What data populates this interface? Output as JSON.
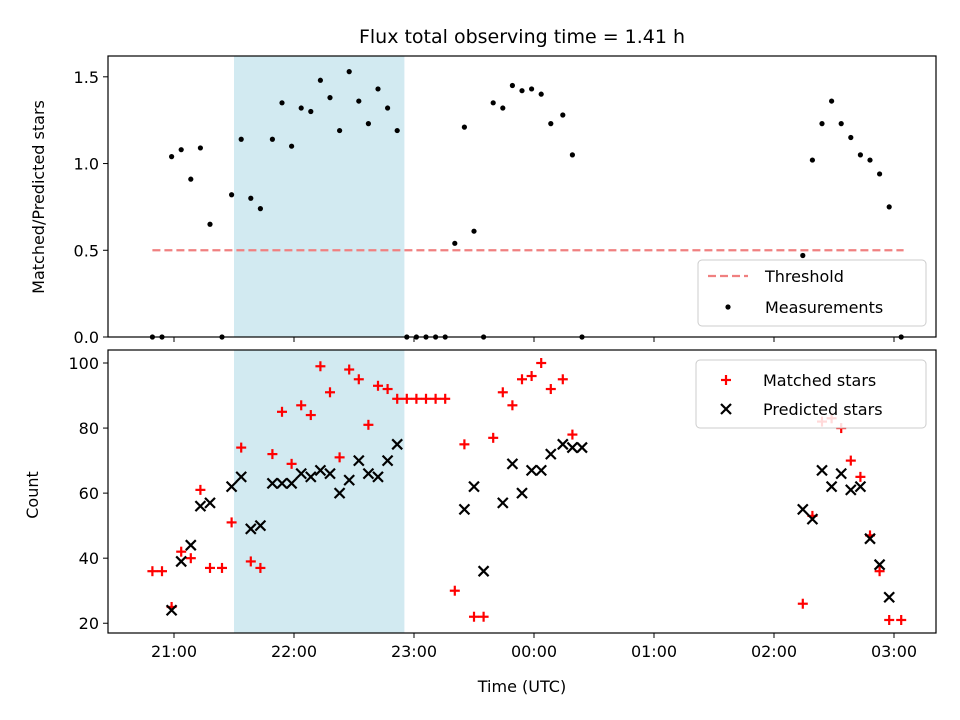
{
  "chart_data": {
    "type": "scatter",
    "title": "Flux total observing time = 1.41 h",
    "xlabel": "Time (UTC)",
    "x_unit": "hours since 00:00 UTC",
    "xlim": [
      -3.55,
      3.35
    ],
    "x_ticks": [
      {
        "value": -3,
        "label": "21:00"
      },
      {
        "value": -2,
        "label": "22:00"
      },
      {
        "value": -1,
        "label": "23:00"
      },
      {
        "value": 0,
        "label": "00:00"
      },
      {
        "value": 1,
        "label": "01:00"
      },
      {
        "value": 2,
        "label": "02:00"
      },
      {
        "value": 3,
        "label": "03:00"
      }
    ],
    "shaded_region": {
      "x": [
        -2.5,
        -1.08
      ],
      "color": "#add8e6"
    },
    "panels": [
      {
        "id": "ratio",
        "ylabel": "Matched/Predicted stars",
        "ylim": [
          0,
          1.62
        ],
        "y_ticks": [
          0.0,
          0.5,
          1.0,
          1.5
        ],
        "y_tick_labels": [
          "0.0",
          "0.5",
          "1.0",
          "1.5"
        ],
        "legend": {
          "placement": "lower right",
          "entries": [
            "Threshold",
            "Measurements"
          ]
        },
        "threshold": {
          "name": "Threshold",
          "y": 0.5,
          "x_range": [
            -3.18,
            3.08
          ],
          "color": "#f08080"
        },
        "measurements": {
          "name": "Measurements",
          "color": "#000000",
          "x": [
            -3.18,
            -3.1,
            -3.02,
            -2.94,
            -2.86,
            -2.78,
            -2.7,
            -2.6,
            -2.52,
            -2.44,
            -2.36,
            -2.28,
            -2.18,
            -2.1,
            -2.02,
            -1.94,
            -1.86,
            -1.78,
            -1.7,
            -1.62,
            -1.54,
            -1.46,
            -1.38,
            -1.3,
            -1.22,
            -1.14,
            -1.06,
            -0.98,
            -0.9,
            -0.82,
            -0.74,
            -0.66,
            -0.58,
            -0.5,
            -0.42,
            -0.34,
            -0.26,
            -0.18,
            -0.1,
            -0.02,
            0.06,
            0.14,
            0.24,
            0.32,
            0.4,
            2.24,
            2.32,
            2.4,
            2.48,
            2.56,
            2.64,
            2.72,
            2.8,
            2.88,
            2.96,
            3.06
          ],
          "y": [
            0.0,
            0.0,
            1.04,
            1.08,
            0.91,
            1.09,
            0.65,
            0.0,
            0.82,
            1.14,
            0.8,
            0.74,
            1.14,
            1.35,
            1.1,
            1.32,
            1.3,
            1.48,
            1.38,
            1.19,
            1.53,
            1.36,
            1.23,
            1.43,
            1.32,
            1.19,
            0.0,
            0.0,
            0.0,
            0.0,
            0.0,
            0.54,
            1.21,
            0.61,
            0.0,
            1.35,
            1.32,
            1.45,
            1.42,
            1.43,
            1.4,
            1.23,
            1.28,
            1.05,
            0.0,
            0.47,
            1.02,
            1.23,
            1.36,
            1.23,
            1.15,
            1.05,
            1.02,
            0.94,
            0.75,
            0.0
          ]
        }
      },
      {
        "id": "count",
        "ylabel": "Count",
        "ylim": [
          17,
          104
        ],
        "y_ticks": [
          20,
          40,
          60,
          80,
          100
        ],
        "y_tick_labels": [
          "20",
          "40",
          "60",
          "80",
          "100"
        ],
        "legend": {
          "placement": "upper right",
          "entries": [
            "Matched stars",
            "Predicted stars"
          ]
        },
        "series": [
          {
            "name": "Matched stars",
            "marker": "plus",
            "color": "#ff0000",
            "x": [
              -3.18,
              -3.1,
              -3.02,
              -2.94,
              -2.86,
              -2.78,
              -2.7,
              -2.6,
              -2.52,
              -2.44,
              -2.36,
              -2.28,
              -2.18,
              -2.1,
              -2.02,
              -1.94,
              -1.86,
              -1.78,
              -1.7,
              -1.62,
              -1.54,
              -1.46,
              -1.38,
              -1.3,
              -1.22,
              -1.14,
              -1.06,
              -0.98,
              -0.9,
              -0.82,
              -0.74,
              -0.66,
              -0.58,
              -0.5,
              -0.42,
              -0.34,
              -0.26,
              -0.18,
              -0.1,
              -0.02,
              0.06,
              0.14,
              0.24,
              0.32,
              0.4,
              2.24,
              2.32,
              2.4,
              2.48,
              2.56,
              2.64,
              2.72,
              2.8,
              2.88,
              2.96,
              3.06
            ],
            "y": [
              36,
              36,
              25,
              42,
              40,
              61,
              37,
              37,
              51,
              74,
              39,
              37,
              72,
              85,
              69,
              87,
              84,
              99,
              91,
              71,
              98,
              95,
              81,
              93,
              92,
              89,
              89,
              89,
              89,
              89,
              89,
              30,
              75,
              22,
              22,
              77,
              91,
              87,
              95,
              96,
              100,
              92,
              95,
              78,
              null,
              26,
              53,
              82,
              83,
              80,
              70,
              65,
              47,
              36,
              21,
              21
            ]
          },
          {
            "name": "Predicted stars",
            "marker": "x",
            "color": "#000000",
            "x": [
              -3.02,
              -2.94,
              -2.86,
              -2.78,
              -2.7,
              -2.52,
              -2.44,
              -2.36,
              -2.28,
              -2.18,
              -2.1,
              -2.02,
              -1.94,
              -1.86,
              -1.78,
              -1.7,
              -1.62,
              -1.54,
              -1.46,
              -1.38,
              -1.3,
              -1.22,
              -1.14,
              -0.58,
              -0.5,
              -0.42,
              -0.26,
              -0.18,
              -0.1,
              -0.02,
              0.06,
              0.14,
              0.24,
              0.32,
              0.4,
              2.24,
              2.32,
              2.4,
              2.48,
              2.56,
              2.64,
              2.72,
              2.8,
              2.88,
              2.96
            ],
            "y": [
              24,
              39,
              44,
              56,
              57,
              62,
              65,
              49,
              50,
              63,
              63,
              63,
              66,
              65,
              67,
              66,
              60,
              64,
              70,
              66,
              65,
              70,
              75,
              55,
              62,
              36,
              57,
              69,
              60,
              67,
              67,
              72,
              75,
              74,
              74,
              55,
              52,
              67,
              62,
              66,
              61,
              62,
              46,
              38,
              28
            ]
          }
        ]
      }
    ]
  }
}
